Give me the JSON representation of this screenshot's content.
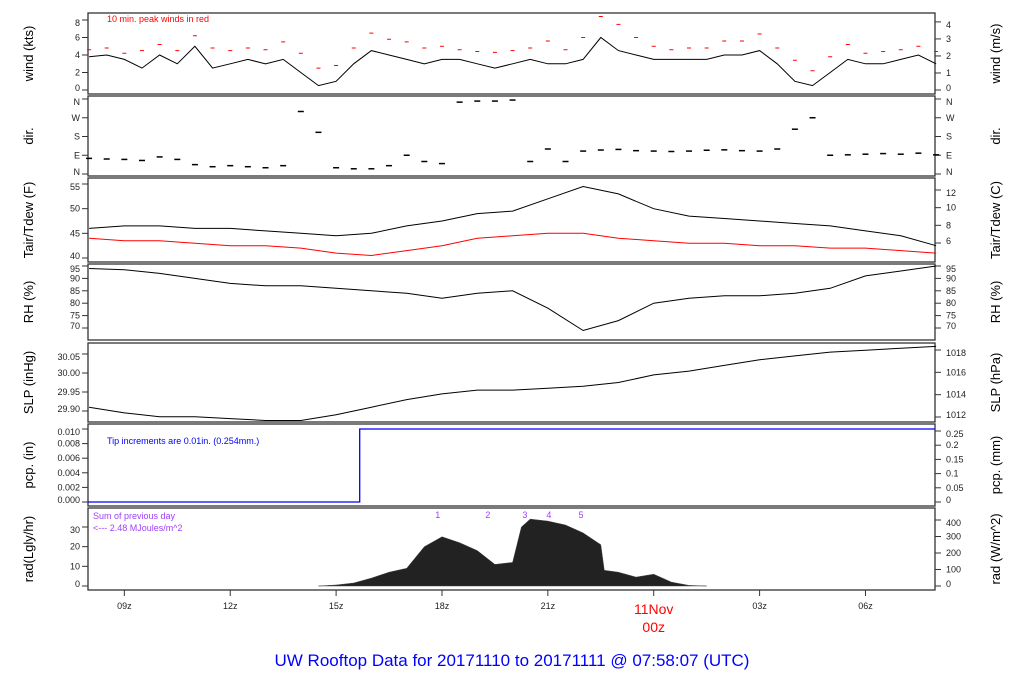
{
  "title": "UW Rooftop Data for 20171110  to  20171111 @ 07:58:07  (UTC)",
  "colors": {
    "line": "#000000",
    "gust": "#ff0000",
    "dew": "#ff0000",
    "pcp": "#0000ff",
    "title": "#0000ff",
    "rad_note": "#a040ff",
    "date": "#ff0000"
  },
  "chart_data": {
    "type": "line",
    "x_unit": "hours since 2017-11-10 00z",
    "xlim": [
      7.97,
      31.97
    ],
    "x_ticks": [
      {
        "hour": 9,
        "label": "09z"
      },
      {
        "hour": 12,
        "label": "12z"
      },
      {
        "hour": 15,
        "label": "15z"
      },
      {
        "hour": 18,
        "label": "18z"
      },
      {
        "hour": 21,
        "label": "21z"
      },
      {
        "hour": 24,
        "label": "11Nov",
        "label2": "00z"
      },
      {
        "hour": 27,
        "label": "03z"
      },
      {
        "hour": 30,
        "label": "06z"
      }
    ],
    "panels": {
      "wind": {
        "ylabel": "wind (kts)",
        "ylabel_right": "wind (m/s)",
        "ticks": [
          "0",
          "2",
          "4",
          "6",
          "8"
        ],
        "ticks_right": [
          "0",
          "1",
          "2",
          "3",
          "4"
        ],
        "annotation": "10 min. peak winds in red",
        "x": [
          8,
          8.5,
          9,
          9.5,
          10,
          10.5,
          11,
          11.5,
          12,
          12.5,
          13,
          13.5,
          14,
          14.5,
          15,
          15.5,
          16,
          16.5,
          17,
          17.5,
          18,
          18.5,
          19,
          19.5,
          20,
          20.5,
          21,
          21.5,
          22,
          22.5,
          23,
          23.5,
          24,
          24.5,
          25,
          25.5,
          26,
          26.5,
          27,
          27.5,
          28,
          28.5,
          29,
          29.5,
          30,
          30.5,
          31,
          31.5,
          32
        ],
        "speed": [
          3.8,
          4,
          3.5,
          2.5,
          4,
          3,
          5,
          2.5,
          3,
          3.5,
          3,
          3.5,
          2,
          0.5,
          1,
          3,
          4.5,
          4,
          3.5,
          3,
          3.5,
          3.5,
          3,
          2.5,
          3,
          3.5,
          3,
          3,
          3.5,
          6,
          4.5,
          4,
          3.5,
          3.5,
          3.5,
          3.5,
          4,
          4,
          4.5,
          3,
          1,
          0.5,
          2,
          3.5,
          3,
          3,
          3.5,
          4,
          3
        ],
        "peak": [
          4.6,
          4.8,
          4.2,
          4.5,
          5.2,
          4.5,
          6.2,
          4.8,
          4.5,
          4.8,
          4.6,
          5.5,
          4.2,
          2.5,
          2.8,
          4.8,
          6.5,
          5.8,
          5.5,
          4.8,
          5,
          4.6,
          4.4,
          4.3,
          4.5,
          4.8,
          5.6,
          4.6,
          6,
          8.4,
          7.5,
          6,
          5,
          4.6,
          4.8,
          4.8,
          5.6,
          5.6,
          6.4,
          4.8,
          3.4,
          2.2,
          3.8,
          5.2,
          4.2,
          4.4,
          4.6,
          5,
          4.4
        ]
      },
      "dir": {
        "ylabel": "dir.",
        "ylabel_right": "dir.",
        "ticks": [
          "N",
          "E",
          "S",
          "W",
          "N"
        ],
        "ticks_right": [
          "N",
          "E",
          "S",
          "W",
          "N"
        ],
        "x": [
          8,
          8.5,
          9,
          9.5,
          10,
          10.5,
          11,
          11.5,
          12,
          12.5,
          13,
          13.5,
          14,
          14.5,
          15,
          15.5,
          16,
          16.5,
          17,
          17.5,
          18,
          18.5,
          19,
          19.5,
          20,
          20.5,
          21,
          21.5,
          22,
          22.5,
          23,
          23.5,
          24,
          24.5,
          25,
          25.5,
          26,
          26.5,
          27,
          27.5,
          28,
          28.5,
          29,
          29.5,
          30,
          30.5,
          31,
          31.5,
          32
        ],
        "deg": [
          75,
          72,
          70,
          65,
          82,
          70,
          45,
          35,
          40,
          35,
          30,
          40,
          300,
          200,
          30,
          25,
          25,
          40,
          90,
          60,
          50,
          345,
          350,
          350,
          355,
          60,
          120,
          60,
          110,
          115,
          118,
          112,
          110,
          108,
          110,
          114,
          116,
          112,
          110,
          120,
          215,
          270,
          90,
          92,
          95,
          98,
          95,
          100,
          92
        ]
      },
      "temp": {
        "ylabel": "Tair/Tdew (F)",
        "ylabel_right": "Tair/Tdew (C)",
        "ticks": [
          "40",
          "45",
          "50",
          "55"
        ],
        "ticks_right": [
          "6",
          "8",
          "10",
          "12"
        ],
        "x": [
          8,
          9,
          10,
          11,
          12,
          13,
          14,
          15,
          16,
          17,
          18,
          19,
          20,
          21,
          22,
          23,
          24,
          25,
          26,
          27,
          28,
          29,
          30,
          31,
          32
        ],
        "tair": [
          46,
          46.5,
          46.5,
          46,
          46,
          45.5,
          45,
          44.5,
          45,
          46.5,
          47.5,
          49,
          49.5,
          52,
          54.5,
          53,
          50,
          48.5,
          48,
          47.5,
          47,
          46.5,
          45.5,
          44.5,
          42.5
        ],
        "tdew": [
          44,
          43.5,
          43.5,
          43,
          42.5,
          42.5,
          42,
          41,
          40.5,
          41.5,
          42.5,
          44,
          44.5,
          45,
          45,
          44,
          43.5,
          43,
          43,
          42.5,
          42.5,
          42,
          42,
          41.5,
          41
        ]
      },
      "rh": {
        "ylabel": "RH (%)",
        "ylabel_right": "RH (%)",
        "ticks": [
          "70",
          "75",
          "80",
          "85",
          "90",
          "95"
        ],
        "ticks_right": [
          "70",
          "75",
          "80",
          "85",
          "90",
          "95"
        ],
        "x": [
          8,
          9,
          10,
          11,
          12,
          13,
          14,
          15,
          16,
          17,
          18,
          19,
          20,
          21,
          22,
          23,
          24,
          25,
          26,
          27,
          28,
          29,
          30,
          31,
          32
        ],
        "rh": [
          94,
          93.5,
          92,
          90,
          88,
          87,
          87,
          86,
          85,
          84,
          82,
          84,
          85,
          78,
          69,
          73,
          80,
          82,
          83,
          83,
          84,
          86,
          91,
          93,
          95
        ]
      },
      "slp": {
        "ylabel": "SLP (inHg)",
        "ylabel_right": "SLP (hPa)",
        "ticks": [
          "29.90",
          "29.95",
          "30.00",
          "30.05"
        ],
        "ticks_right": [
          "1012",
          "1014",
          "1016",
          "1018"
        ],
        "x": [
          8,
          9,
          10,
          11,
          12,
          13,
          14,
          15,
          16,
          17,
          18,
          19,
          20,
          21,
          22,
          23,
          24,
          25,
          26,
          27,
          28,
          29,
          30,
          31,
          32
        ],
        "slp": [
          29.91,
          29.895,
          29.885,
          29.885,
          29.88,
          29.875,
          29.875,
          29.89,
          29.91,
          29.93,
          29.945,
          29.955,
          29.955,
          29.96,
          29.965,
          29.975,
          29.995,
          30.005,
          30.02,
          30.035,
          30.045,
          30.055,
          30.06,
          30.065,
          30.07
        ]
      },
      "pcp": {
        "ylabel": "pcp. (in)",
        "ylabel_right": "pcp. (mm)",
        "ticks": [
          "0.000",
          "0.002",
          "0.004",
          "0.006",
          "0.008",
          "0.010"
        ],
        "ticks_right": [
          "0",
          "0.05",
          "0.1",
          "0.15",
          "0.2",
          "0.25"
        ],
        "annotation": "Tip increments are 0.01in. (0.254mm.)",
        "x": [
          7.97,
          15.67,
          15.67,
          31.97
        ],
        "pcp": [
          0,
          0,
          0.01,
          0.01
        ]
      },
      "rad": {
        "ylabel": "rad(Lgly/hr)",
        "ylabel_right": "rad (W/m^2)",
        "ticks": [
          "0",
          "10",
          "20",
          "30"
        ],
        "ticks_right": [
          "0",
          "100",
          "200",
          "300",
          "400"
        ],
        "note_line1": "Sum of previous day",
        "note_line2": "<--- 2.48 MJoules/m^2",
        "markers": [
          {
            "hour": 17.88,
            "label": "1"
          },
          {
            "hour": 19.3,
            "label": "2"
          },
          {
            "hour": 20.35,
            "label": "3"
          },
          {
            "hour": 21.03,
            "label": "4"
          },
          {
            "hour": 21.94,
            "label": "5"
          }
        ],
        "x": [
          14.5,
          15,
          15.5,
          16,
          16.5,
          17,
          17.5,
          18,
          18.5,
          19,
          19.5,
          20,
          20.25,
          20.5,
          21,
          21.5,
          22,
          22.5,
          22.6,
          23,
          23.5,
          24,
          24.5,
          25,
          25.5
        ],
        "rad": [
          0,
          0.5,
          1.5,
          4,
          7,
          9,
          20,
          25,
          22,
          18,
          11,
          12,
          30,
          34,
          33,
          31,
          27,
          21,
          8,
          7,
          4.5,
          6,
          2,
          0.3,
          0
        ]
      }
    }
  }
}
